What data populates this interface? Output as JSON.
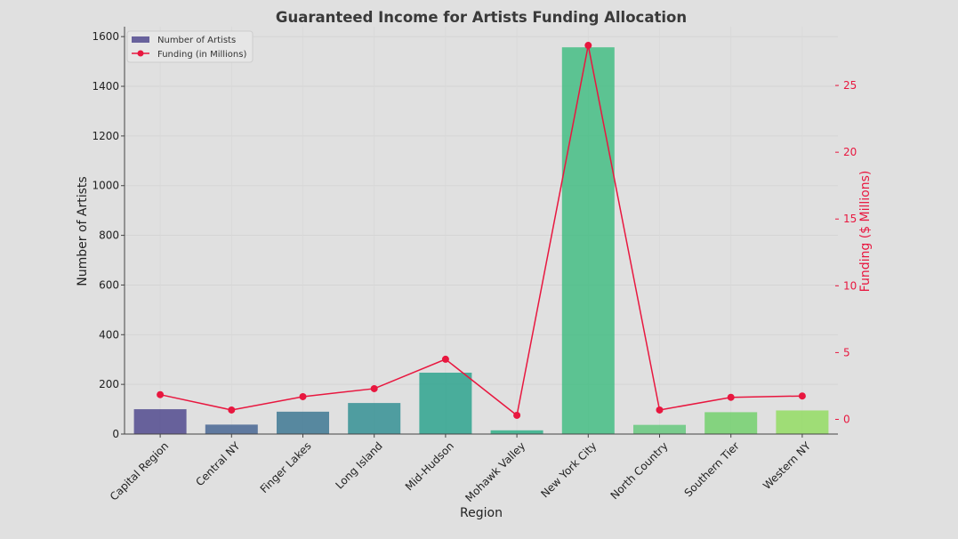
{
  "chart_data": {
    "type": "bar",
    "title": "Guaranteed Income for Artists Funding Allocation",
    "xlabel": "Region",
    "ylabel": "Number of Artists",
    "y2label": "Funding ($ Millions)",
    "categories": [
      "Capital Region",
      "Central NY",
      "Finger Lakes",
      "Long Island",
      "Mid-Hudson",
      "Mohawk Valley",
      "New York City",
      "North Country",
      "Southern Tier",
      "Western NY"
    ],
    "series": [
      {
        "name": "Number of Artists",
        "type": "bar",
        "axis": "left",
        "values": [
          100,
          38,
          90,
          125,
          247,
          15,
          1557,
          37,
          88,
          95
        ],
        "colors": [
          "#48418a",
          "#3e5f8f",
          "#34728f",
          "#2a8c90",
          "#23a08a",
          "#25ad83",
          "#3bbb7e",
          "#5fc778",
          "#6dcf66",
          "#8fdc5b"
        ]
      },
      {
        "name": "Funding (in Millions)",
        "type": "line",
        "axis": "right",
        "color": "#e8173f",
        "values": [
          1.85,
          0.7,
          1.7,
          2.3,
          4.5,
          0.3,
          28.0,
          0.7,
          1.65,
          1.75
        ]
      }
    ],
    "ylim": [
      0,
      1640
    ],
    "y2lim": [
      -1.1,
      29.4
    ],
    "yticks": [
      0,
      200,
      400,
      600,
      800,
      1000,
      1200,
      1400,
      1600
    ],
    "y2ticks": [
      0,
      5,
      10,
      15,
      20,
      25
    ],
    "y2color": "#e8173f",
    "legend_position": "top-left",
    "grid": true
  }
}
